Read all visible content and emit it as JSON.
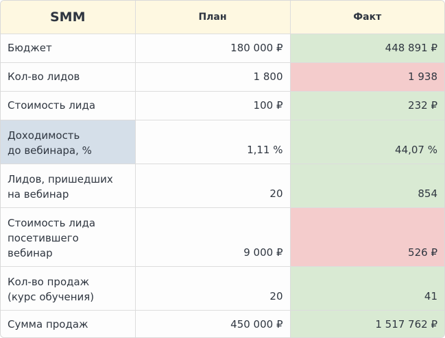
{
  "table": {
    "title": "SMM",
    "columns": [
      "План",
      "Факт"
    ],
    "rows": [
      {
        "label": [
          "Бюджет"
        ],
        "plan": "180 000 ₽",
        "fact": "448 891 ₽",
        "fact_status": "good"
      },
      {
        "label": [
          "Кол-во лидов"
        ],
        "plan": "1 800",
        "fact": "1 938",
        "fact_status": "bad"
      },
      {
        "label": [
          "Стоимость лида"
        ],
        "plan": "100 ₽",
        "fact": "232 ₽",
        "fact_status": "good"
      },
      {
        "label": [
          "Доходимость",
          "до вебинара, %"
        ],
        "plan": "1,11 %",
        "fact": "44,07 %",
        "fact_status": "good",
        "label_highlighted": true
      },
      {
        "label": [
          "Лидов, пришедших",
          "на вебинар"
        ],
        "plan": "20",
        "fact": "854",
        "fact_status": "good"
      },
      {
        "label": [
          "Стоимость лида",
          "посетившего",
          "вебинар"
        ],
        "plan": "9 000 ₽",
        "fact": "526 ₽",
        "fact_status": "bad"
      },
      {
        "label": [
          "Кол-во продаж",
          "(курс обучения)"
        ],
        "plan": "20",
        "fact": "41",
        "fact_status": "good"
      },
      {
        "label": [
          "Сумма продаж"
        ],
        "plan": "450 000 ₽",
        "fact": "1 517 762 ₽",
        "fact_status": "good"
      }
    ]
  },
  "colors": {
    "header_bg": "#fef8e1",
    "good": "#d9ead3",
    "bad": "#f4cccc",
    "highlight": "#d5dfe9",
    "text": "#2f3640",
    "border": "#dcdcdc"
  }
}
